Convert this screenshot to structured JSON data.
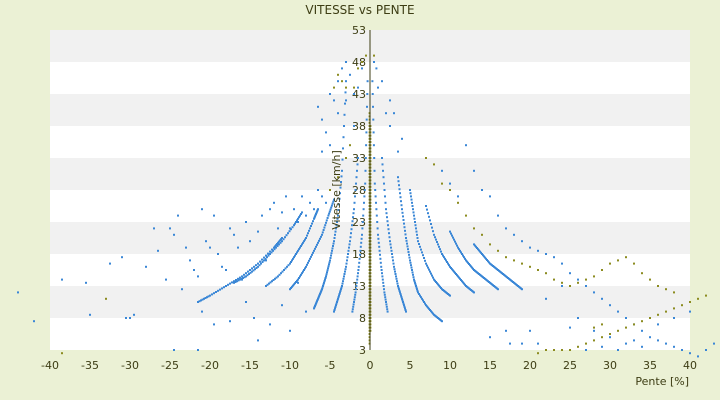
{
  "chart_data": {
    "type": "scatter",
    "title": "VITESSE vs PENTE",
    "xlabel": "Pente [%]",
    "ylabel": "Vitesse [km/h]",
    "xlim": [
      -40,
      40
    ],
    "ylim": [
      3,
      53
    ],
    "x_ticks": [
      "-40",
      "-35",
      "-30",
      "-25",
      "-20",
      "-15",
      "-10",
      "-5",
      "0",
      "5",
      "10",
      "15",
      "20",
      "25",
      "30",
      "35",
      "40"
    ],
    "y_ticks": [
      "3",
      "8",
      "13",
      "18",
      "23",
      "28",
      "33",
      "38",
      "43",
      "48",
      "53"
    ],
    "grid": "horizontal bands",
    "legend": "none",
    "colors": {
      "background": "#ebf1d5",
      "plot_band_light": "#ffffff",
      "plot_band_dark": "#f1f1f1",
      "series_blue": "#3a87d6",
      "series_olive": "#8c8c20",
      "axis": "#3d3d14"
    },
    "series": [
      {
        "color": "#3a87d6",
        "curves": [
          {
            "x": [
              -21.5,
              -20,
              -18,
              -16,
              -14,
              -12,
              -11
            ],
            "y": [
              10.5,
              11.5,
              13,
              14.5,
              16.5,
              19,
              20.5
            ]
          },
          {
            "x": [
              -17,
              -15.5,
              -14,
              -12.5,
              -11,
              -9.5,
              -8.5
            ],
            "y": [
              13.5,
              14.5,
              16,
              18,
              20,
              22.5,
              24.5
            ]
          },
          {
            "x": [
              -13,
              -11.5,
              -10,
              -9,
              -8,
              -7,
              -6.5
            ],
            "y": [
              13,
              14.5,
              16.5,
              18.5,
              20.5,
              23.5,
              25
            ]
          },
          {
            "x": [
              -10,
              -9,
              -8,
              -7,
              -6,
              -5.2,
              -4.5
            ],
            "y": [
              12.5,
              14,
              16,
              18.5,
              21,
              24,
              26.5
            ]
          },
          {
            "x": [
              -7,
              -6.5,
              -6,
              -5.5,
              -5,
              -4.5,
              -4,
              -3.5,
              -3
            ],
            "y": [
              9.5,
              11,
              12.5,
              14.5,
              17,
              20,
              24,
              31,
              45
            ]
          },
          {
            "x": [
              -4.5,
              -4,
              -3.5,
              -3,
              -2.5,
              -2,
              -1.5
            ],
            "y": [
              9,
              11,
              13,
              16,
              20,
              25,
              33
            ]
          },
          {
            "x": [
              -2.2,
              -1.8,
              -1.4,
              -1,
              -0.6,
              -0.3
            ],
            "y": [
              9,
              12,
              16,
              21,
              29,
              45
            ]
          },
          {
            "x": [
              0.3,
              0.6,
              1,
              1.4,
              1.8,
              2.2
            ],
            "y": [
              45,
              29,
              21,
              16,
              12,
              9
            ]
          },
          {
            "x": [
              1.5,
              2,
              2.5,
              3,
              3.5,
              4,
              4.5
            ],
            "y": [
              33,
              25,
              20,
              16,
              13,
              11,
              9
            ]
          },
          {
            "x": [
              3.5,
              4,
              4.5,
              5,
              5.5,
              6,
              7,
              8,
              9
            ],
            "y": [
              30,
              25,
              20.5,
              17,
              14,
              12,
              10,
              8.5,
              7.5
            ]
          },
          {
            "x": [
              5,
              5.5,
              6,
              7,
              8,
              9,
              10
            ],
            "y": [
              28,
              24,
              20,
              16.5,
              14,
              12.5,
              11.5
            ]
          },
          {
            "x": [
              7,
              8,
              9,
              10,
              11,
              12,
              13
            ],
            "y": [
              25.5,
              21,
              18,
              16,
              14.5,
              13,
              12
            ]
          },
          {
            "x": [
              10,
              11,
              12,
              13,
              14,
              15,
              16
            ],
            "y": [
              21.5,
              19,
              17,
              15.5,
              14.5,
              13.5,
              12.5
            ]
          },
          {
            "x": [
              13,
              14,
              15,
              16,
              17,
              18,
              19
            ],
            "y": [
              19.5,
              18,
              16.5,
              15.5,
              14.5,
              13.5,
              12.5
            ]
          }
        ]
      },
      {
        "color": "#8c8c20",
        "curves": [
          {
            "x": [
              -0.05,
              -0.05,
              -0.05,
              -0.05,
              -0.05,
              -0.05,
              -0.05,
              -0.05,
              -0.05,
              -0.05
            ],
            "y": [
              4,
              8,
              12,
              16,
              20,
              24,
              28,
              32,
              36,
              40
            ]
          },
          {
            "x": [
              0.05,
              0.05,
              0.05,
              0.05,
              0.05,
              0.05,
              0.05,
              0.05,
              0.05
            ],
            "y": [
              6,
              10,
              14,
              18,
              22,
              26,
              30,
              34,
              38
            ]
          }
        ]
      }
    ],
    "scatter_points": {
      "blue": [
        [
          -44,
          12
        ],
        [
          -42,
          7.5
        ],
        [
          -38.5,
          14
        ],
        [
          -35.5,
          13.5
        ],
        [
          -35,
          8.5
        ],
        [
          -32.5,
          16.5
        ],
        [
          -31,
          17.5
        ],
        [
          -30.5,
          8
        ],
        [
          -30,
          8
        ],
        [
          -29.5,
          8.5
        ],
        [
          -28,
          16
        ],
        [
          -27,
          22
        ],
        [
          -26.5,
          18.5
        ],
        [
          -25.5,
          14
        ],
        [
          -25,
          22
        ],
        [
          -24.5,
          21
        ],
        [
          -24,
          24
        ],
        [
          -24.5,
          3
        ],
        [
          -23.5,
          12.5
        ],
        [
          -23,
          19
        ],
        [
          -22.5,
          17
        ],
        [
          -22,
          15.5
        ],
        [
          -21.5,
          14.5
        ],
        [
          -21,
          25
        ],
        [
          -20.5,
          20
        ],
        [
          -20,
          19
        ],
        [
          -19.5,
          24
        ],
        [
          -19,
          18
        ],
        [
          -18.5,
          16
        ],
        [
          -18,
          15.5
        ],
        [
          -17.5,
          22
        ],
        [
          -17,
          21
        ],
        [
          -16.5,
          19
        ],
        [
          -16,
          14
        ],
        [
          -15.5,
          23
        ],
        [
          -15,
          20
        ],
        [
          -14.5,
          8
        ],
        [
          -14,
          21.5
        ],
        [
          -13.5,
          24
        ],
        [
          -13,
          17
        ],
        [
          -12.5,
          25
        ],
        [
          -12,
          26
        ],
        [
          -11.5,
          22
        ],
        [
          -11,
          24.5
        ],
        [
          -10.5,
          27
        ],
        [
          -10,
          22
        ],
        [
          -9.5,
          25
        ],
        [
          -9,
          23
        ],
        [
          -8.5,
          27
        ],
        [
          -8,
          24
        ],
        [
          -7.5,
          26
        ],
        [
          -7,
          25
        ],
        [
          -6.5,
          28
        ],
        [
          -6,
          27
        ],
        [
          -5.5,
          26
        ],
        [
          -21.5,
          3
        ],
        [
          -21,
          9
        ],
        [
          -19.5,
          7
        ],
        [
          -17.5,
          7.5
        ],
        [
          -15.5,
          10.5
        ],
        [
          -14,
          4.5
        ],
        [
          -12.5,
          7
        ],
        [
          -11,
          10
        ],
        [
          -10,
          6
        ],
        [
          -8,
          9
        ],
        [
          -9,
          13.5
        ],
        [
          -6.5,
          41
        ],
        [
          -6,
          39
        ],
        [
          -5.5,
          37
        ],
        [
          -5,
          43
        ],
        [
          -4.5,
          42
        ],
        [
          -4,
          45
        ],
        [
          -3.5,
          47
        ],
        [
          -3,
          48
        ],
        [
          -2.5,
          46
        ],
        [
          -2,
          38
        ],
        [
          -1.5,
          44
        ],
        [
          -1,
          47
        ],
        [
          -6,
          34
        ],
        [
          -5,
          35
        ],
        [
          -4,
          40
        ],
        [
          -3,
          42
        ],
        [
          -2,
          43
        ],
        [
          2,
          40
        ],
        [
          2.5,
          38
        ],
        [
          3,
          40
        ],
        [
          4,
          36
        ],
        [
          3.5,
          34
        ],
        [
          2.5,
          42
        ],
        [
          1.5,
          45
        ],
        [
          1,
          44
        ],
        [
          0.8,
          47
        ],
        [
          0.5,
          48
        ],
        [
          9,
          31
        ],
        [
          10,
          29
        ],
        [
          11,
          27
        ],
        [
          12,
          35
        ],
        [
          13,
          31
        ],
        [
          14,
          28
        ],
        [
          15,
          27
        ],
        [
          16,
          24
        ],
        [
          17,
          22
        ],
        [
          18,
          21
        ],
        [
          19,
          20
        ],
        [
          20,
          19
        ],
        [
          21,
          18.5
        ],
        [
          22,
          18
        ],
        [
          23,
          17.5
        ],
        [
          24,
          16.5
        ],
        [
          25,
          15
        ],
        [
          26,
          14
        ],
        [
          27,
          13
        ],
        [
          28,
          12
        ],
        [
          29,
          11
        ],
        [
          30,
          10
        ],
        [
          31,
          9
        ],
        [
          32,
          8
        ],
        [
          33,
          7
        ],
        [
          34,
          6
        ],
        [
          35,
          5
        ],
        [
          36,
          4.5
        ],
        [
          37,
          4
        ],
        [
          38,
          3.5
        ],
        [
          39,
          3
        ],
        [
          40,
          2.5
        ],
        [
          41,
          2
        ],
        [
          42,
          3
        ],
        [
          43,
          4
        ],
        [
          44,
          5.5
        ],
        [
          36,
          7
        ],
        [
          38,
          8
        ],
        [
          40,
          9
        ],
        [
          22,
          11
        ],
        [
          24,
          13
        ],
        [
          26,
          8
        ],
        [
          28,
          6
        ],
        [
          30,
          5
        ],
        [
          32,
          4
        ],
        [
          34,
          3.5
        ],
        [
          17,
          6
        ],
        [
          19,
          4
        ],
        [
          21,
          4
        ],
        [
          15,
          5
        ],
        [
          17.5,
          4
        ],
        [
          20,
          6
        ],
        [
          25,
          6.5
        ],
        [
          27,
          3
        ],
        [
          29,
          3.5
        ],
        [
          31,
          3
        ],
        [
          33,
          4.5
        ]
      ],
      "olive": [
        [
          -38.5,
          2.5
        ],
        [
          -33,
          11
        ],
        [
          -5,
          28
        ],
        [
          -4,
          30
        ],
        [
          -3,
          33
        ],
        [
          -2.5,
          35
        ],
        [
          -2,
          44
        ],
        [
          -1.5,
          47
        ],
        [
          -1,
          48
        ],
        [
          -0.5,
          49
        ],
        [
          0.5,
          49
        ],
        [
          -4.5,
          44
        ],
        [
          -4,
          46
        ],
        [
          -3.5,
          45
        ],
        [
          -3,
          44
        ],
        [
          7,
          33
        ],
        [
          8,
          32
        ],
        [
          9,
          29
        ],
        [
          10,
          28
        ],
        [
          11,
          26
        ],
        [
          12,
          24
        ],
        [
          13,
          22
        ],
        [
          14,
          21
        ],
        [
          15,
          19.5
        ],
        [
          16,
          18.5
        ],
        [
          17,
          17.5
        ],
        [
          18,
          17
        ],
        [
          19,
          16.5
        ],
        [
          20,
          16
        ],
        [
          21,
          15.5
        ],
        [
          22,
          15
        ],
        [
          23,
          14
        ],
        [
          24,
          13.5
        ],
        [
          25,
          13
        ],
        [
          26,
          13.5
        ],
        [
          27,
          14
        ],
        [
          28,
          14.5
        ],
        [
          29,
          15.5
        ],
        [
          30,
          16.5
        ],
        [
          31,
          17
        ],
        [
          32,
          17.5
        ],
        [
          33,
          16.5
        ],
        [
          34,
          15
        ],
        [
          35,
          14
        ],
        [
          36,
          13
        ],
        [
          37,
          12.5
        ],
        [
          38,
          12
        ],
        [
          25,
          3
        ],
        [
          26,
          3.5
        ],
        [
          27,
          4
        ],
        [
          28,
          4.5
        ],
        [
          29,
          5
        ],
        [
          30,
          5.5
        ],
        [
          31,
          6
        ],
        [
          32,
          6.5
        ],
        [
          33,
          7
        ],
        [
          34,
          7.5
        ],
        [
          35,
          8
        ],
        [
          36,
          8.5
        ],
        [
          37,
          9
        ],
        [
          38,
          9.5
        ],
        [
          39,
          10
        ],
        [
          40,
          10.5
        ],
        [
          41,
          11
        ],
        [
          42,
          11.5
        ],
        [
          21,
          2.5
        ],
        [
          23,
          3
        ],
        [
          22,
          3
        ],
        [
          24,
          3
        ],
        [
          28,
          6.5
        ],
        [
          29,
          7
        ]
      ]
    }
  }
}
